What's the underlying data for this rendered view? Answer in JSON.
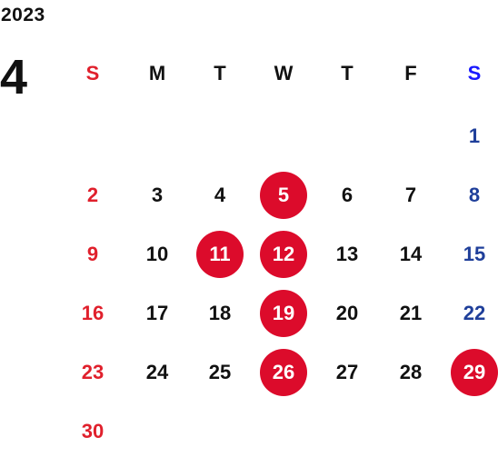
{
  "calendar": {
    "year": "2023",
    "month": "4",
    "weekdays": [
      "S",
      "M",
      "T",
      "W",
      "T",
      "F",
      "S"
    ],
    "weeks": [
      [
        "",
        "",
        "",
        "",
        "",
        "",
        "1"
      ],
      [
        "2",
        "3",
        "4",
        "5",
        "6",
        "7",
        "8"
      ],
      [
        "9",
        "10",
        "11",
        "12",
        "13",
        "14",
        "15"
      ],
      [
        "16",
        "17",
        "18",
        "19",
        "20",
        "21",
        "22"
      ],
      [
        "23",
        "24",
        "25",
        "26",
        "27",
        "28",
        "29"
      ],
      [
        "30",
        "",
        "",
        "",
        "",
        "",
        ""
      ]
    ],
    "highlighted_days": [
      "5",
      "11",
      "12",
      "19",
      "26",
      "29"
    ]
  },
  "colors": {
    "sunday": "#e0202c",
    "saturday": "#1f3f9a",
    "saturday_header": "#1a1aff",
    "weekday": "#111111",
    "highlight": "#dc0b2b"
  }
}
